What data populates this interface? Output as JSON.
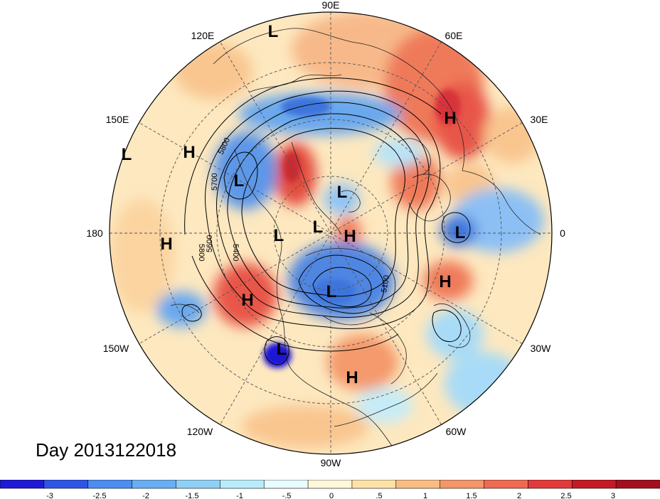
{
  "date_label": "Day 2013122018",
  "longitude_labels": [
    {
      "id": "90e",
      "text": "90E"
    },
    {
      "id": "60e",
      "text": "60E"
    },
    {
      "id": "30e",
      "text": "30E"
    },
    {
      "id": "0",
      "text": "0"
    },
    {
      "id": "30w",
      "text": "30W"
    },
    {
      "id": "60w",
      "text": "60W"
    },
    {
      "id": "90w",
      "text": "90W"
    },
    {
      "id": "120w",
      "text": "120W"
    },
    {
      "id": "150w",
      "text": "150W"
    },
    {
      "id": "180",
      "text": "180"
    },
    {
      "id": "150e",
      "text": "150E"
    },
    {
      "id": "120e",
      "text": "120E"
    }
  ],
  "pressure_centers": [
    {
      "type": "L",
      "region": "east-siberia-top"
    },
    {
      "type": "H",
      "region": "central-siberia"
    },
    {
      "type": "H",
      "region": "far-east-coast"
    },
    {
      "type": "L",
      "region": "west-pacific-edge"
    },
    {
      "type": "L",
      "region": "east-siberian-sea"
    },
    {
      "type": "L",
      "region": "arctic-ocean"
    },
    {
      "type": "L",
      "region": "north-pole"
    },
    {
      "type": "H",
      "region": "greenland"
    },
    {
      "type": "L",
      "region": "bering-strait"
    },
    {
      "type": "H",
      "region": "central-pacific"
    },
    {
      "type": "L",
      "region": "north-atlantic"
    },
    {
      "type": "H",
      "region": "gulf-of-alaska"
    },
    {
      "type": "L",
      "region": "hudson-bay"
    },
    {
      "type": "H",
      "region": "azores"
    },
    {
      "type": "L",
      "region": "baja-california"
    },
    {
      "type": "H",
      "region": "caribbean"
    }
  ],
  "contour_labels": [
    "5800",
    "5700",
    "5800",
    "5600",
    "5400",
    "5100"
  ],
  "colorbar": {
    "colors": [
      "#1f19d6",
      "#2f55e6",
      "#4c8df0",
      "#69aef2",
      "#8fd0f5",
      "#b8ecfa",
      "#e8fbff",
      "#fff7d9",
      "#fde2a8",
      "#f9bd82",
      "#f4966a",
      "#ee6a52",
      "#e23a3a",
      "#c41a26",
      "#a30f1f"
    ],
    "ticks": [
      "-3",
      "-2.5",
      "-2",
      "-1.5",
      "-1",
      "-.5",
      "0",
      ".5",
      "1",
      "1.5",
      "2",
      "2.5",
      "3"
    ]
  }
}
